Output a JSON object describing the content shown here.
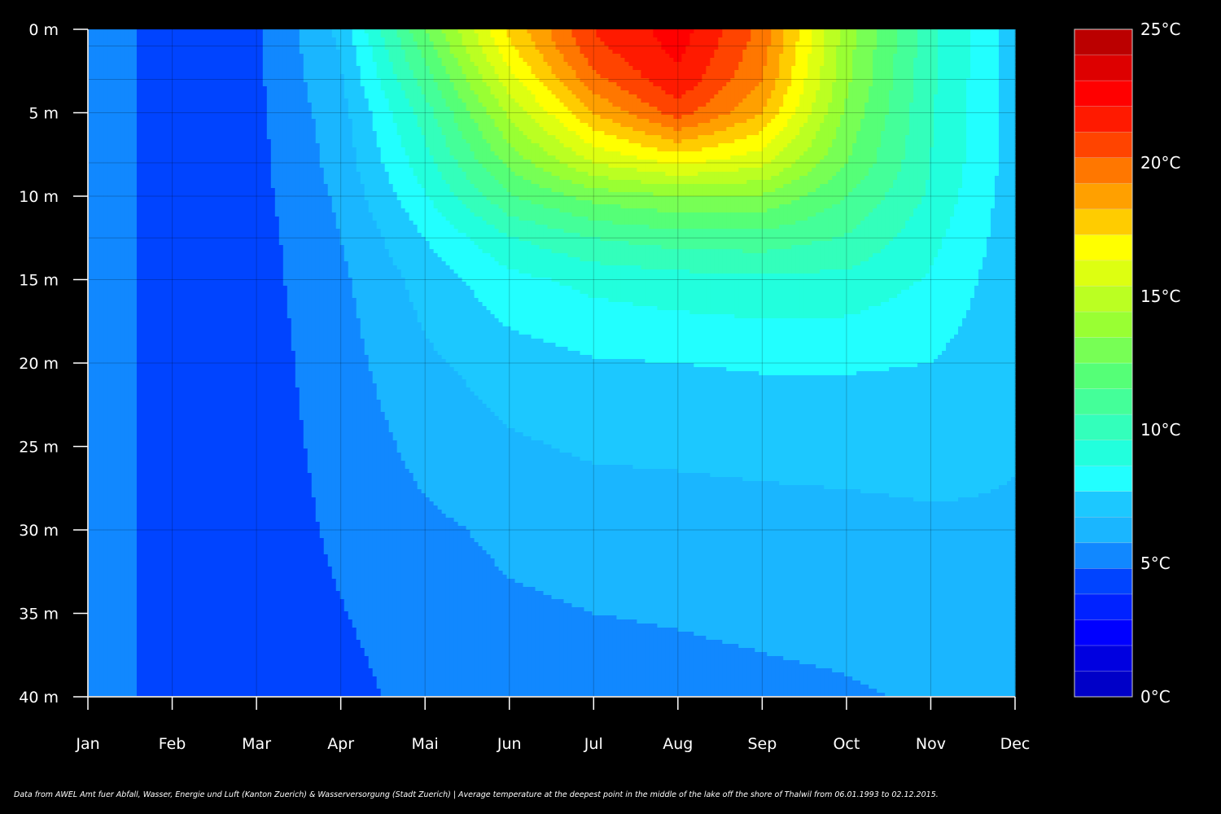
{
  "chart_data": {
    "type": "heatmap",
    "title": "",
    "xlabel": "",
    "ylabel": "",
    "x_ticks": [
      "Jan",
      "Feb",
      "Mar",
      "Apr",
      "Mai",
      "Jun",
      "Jul",
      "Aug",
      "Sep",
      "Oct",
      "Nov",
      "Dec"
    ],
    "y_ticks": [
      "0 m",
      "5 m",
      "10 m",
      "15 m",
      "20 m",
      "25 m",
      "30 m",
      "35 m",
      "40 m"
    ],
    "y_range_m": [
      0,
      40
    ],
    "colorbar": {
      "range": [
        0,
        25
      ],
      "step": 1,
      "labels": [
        "0°C",
        "5°C",
        "10°C",
        "15°C",
        "20°C",
        "25°C"
      ],
      "colors": [
        "#0000c8",
        "#0000e0",
        "#0000ff",
        "#0022ff",
        "#0044ff",
        "#1188ff",
        "#1ab6ff",
        "#1cc8ff",
        "#22ffff",
        "#22ffdd",
        "#33ffbb",
        "#44ff99",
        "#55ff77",
        "#77ff55",
        "#99ff33",
        "#bbff22",
        "#ddff11",
        "#ffff00",
        "#ffcc00",
        "#ffa000",
        "#ff7700",
        "#ff4400",
        "#ff1a00",
        "#ff0000",
        "#dd0000",
        "#bb0000"
      ]
    },
    "depths_m": [
      0,
      1,
      3,
      5,
      8,
      10,
      12.5,
      15,
      20,
      30,
      40
    ],
    "months": [
      1,
      2,
      3,
      4,
      5,
      6,
      7,
      8,
      9,
      10,
      11,
      12
    ],
    "temperature_c": [
      [
        5.6,
        4.6,
        4.8,
        7.3,
        13.0,
        18.2,
        22.0,
        23.5,
        20.7,
        14.5,
        10.3,
        7.5
      ],
      [
        5.6,
        4.6,
        4.8,
        7.1,
        12.5,
        17.8,
        21.8,
        23.3,
        20.5,
        14.4,
        10.3,
        7.5
      ],
      [
        5.6,
        4.6,
        4.8,
        6.9,
        11.5,
        16.6,
        20.7,
        22.8,
        20.0,
        14.2,
        10.2,
        7.5
      ],
      [
        5.6,
        4.6,
        4.8,
        6.6,
        10.5,
        15.2,
        19.0,
        21.5,
        19.0,
        13.8,
        10.1,
        7.5
      ],
      [
        5.6,
        4.6,
        4.7,
        6.4,
        9.6,
        13.3,
        16.0,
        17.2,
        16.3,
        13.0,
        10.0,
        7.5
      ],
      [
        5.6,
        4.6,
        4.7,
        6.2,
        8.9,
        11.9,
        13.4,
        14.0,
        13.9,
        12.0,
        9.8,
        7.4
      ],
      [
        5.6,
        4.6,
        4.6,
        6.0,
        8.0,
        9.9,
        11.0,
        11.5,
        11.6,
        10.9,
        9.3,
        7.4
      ],
      [
        5.6,
        4.6,
        4.6,
        5.8,
        7.4,
        8.7,
        9.3,
        9.6,
        9.8,
        9.7,
        8.9,
        7.3
      ],
      [
        5.6,
        4.6,
        4.5,
        5.6,
        6.8,
        7.5,
        7.9,
        8.0,
        8.1,
        8.1,
        8.0,
        7.2
      ],
      [
        5.6,
        4.6,
        4.4,
        5.2,
        5.8,
        6.2,
        6.4,
        6.45,
        6.55,
        6.65,
        6.8,
        6.9
      ],
      [
        5.6,
        4.6,
        4.4,
        4.7,
        5.3,
        5.5,
        5.6,
        5.7,
        5.8,
        5.9,
        6.1,
        6.3
      ]
    ]
  },
  "footnote": "Data from AWEL Amt fuer Abfall, Wasser, Energie und Luft (Kanton Zuerich) & Wasserversorgung (Stadt Zuerich) | Average temperature at the deepest point in the middle of the lake off the shore of Thalwil from 06.01.1993 to 02.12.2015."
}
